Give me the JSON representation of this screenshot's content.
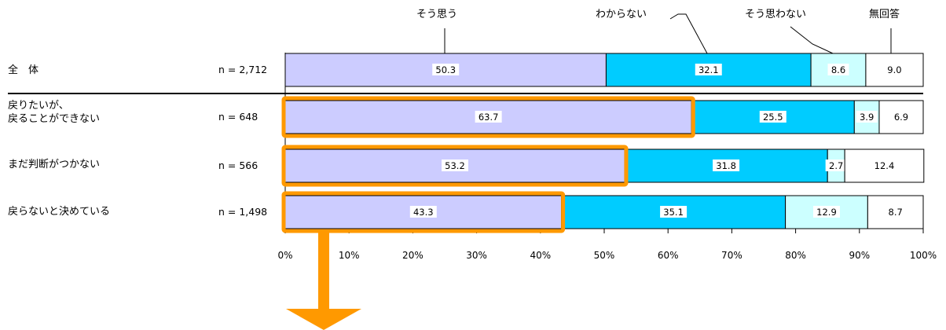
{
  "chart_data": {
    "type": "bar",
    "orientation": "horizontal",
    "stacked": true,
    "categories": [
      "全　体",
      "戻りたいが、\n戻ることができない",
      "まだ判断がつかない",
      "戻らないと決めている"
    ],
    "n_labels": [
      "n = 2,712",
      "n = 648",
      "n = 566",
      "n = 1,498"
    ],
    "series": [
      {
        "name": "そう思う",
        "values": [
          50.3,
          63.7,
          53.2,
          43.3
        ],
        "color": "#ccccff"
      },
      {
        "name": "わからない",
        "values": [
          32.1,
          25.5,
          31.8,
          35.1
        ],
        "color": "#00ccff"
      },
      {
        "name": "そう思わない",
        "values": [
          8.6,
          3.9,
          2.7,
          12.9
        ],
        "color": "#ccffff"
      },
      {
        "name": "無回答",
        "values": [
          9.0,
          6.9,
          12.4,
          8.7
        ],
        "color": "#ffffff"
      }
    ],
    "xlim": [
      0,
      100
    ],
    "x_ticks": [
      "0%",
      "10%",
      "20%",
      "30%",
      "40%",
      "50%",
      "60%",
      "70%",
      "80%",
      "90%",
      "100%"
    ],
    "highlighted_rows": [
      1,
      2,
      3
    ],
    "highlight_color": "#ff9900",
    "legend_placement": "top"
  }
}
